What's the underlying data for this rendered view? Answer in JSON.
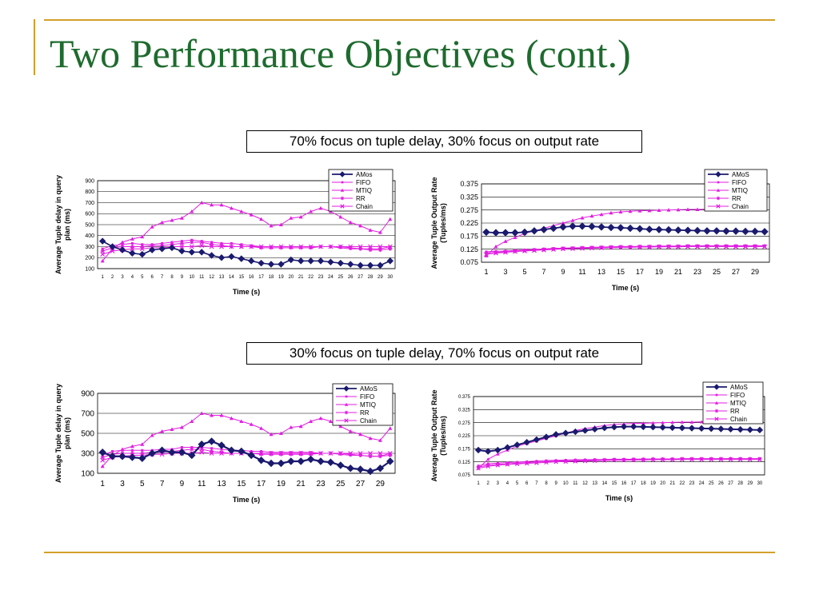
{
  "slide": {
    "title": "Two Performance Objectives (cont.)",
    "caption_top": "70% focus on tuple delay, 30% focus on output rate",
    "caption_bottom": "30% focus on tuple delay, 70% focus on output rate"
  },
  "colors": {
    "accent_gold": "#d4a02a",
    "title_green": "#1e6b2e",
    "amos_navy": "#1a1a6e",
    "magenta": "#e01ee0"
  },
  "chart_data": [
    {
      "id": "delay-top",
      "type": "line",
      "ylabel": "Average Tuple delay in query plan (ms)",
      "xlabel": "Time (s)",
      "ylim": [
        100,
        900
      ],
      "yticks": [
        "100",
        "200",
        "300",
        "400",
        "500",
        "600",
        "700",
        "800",
        "900"
      ],
      "x": [
        1,
        2,
        3,
        4,
        5,
        6,
        7,
        8,
        9,
        10,
        11,
        12,
        13,
        14,
        15,
        16,
        17,
        18,
        19,
        20,
        21,
        22,
        23,
        24,
        25,
        26,
        27,
        28,
        29,
        30
      ],
      "xticks": [
        "1",
        "2",
        "3",
        "4",
        "5",
        "6",
        "7",
        "8",
        "9",
        "10",
        "11",
        "12",
        "13",
        "14",
        "15",
        "16",
        "17",
        "18",
        "19",
        "20",
        "21",
        "22",
        "23",
        "24",
        "25",
        "26",
        "27",
        "28",
        "29",
        "30"
      ],
      "grid": true,
      "legend": "top-right",
      "series": [
        {
          "name": "AMos",
          "color": "#1a1a6e",
          "marker": "diamond",
          "values": [
            350,
            300,
            270,
            240,
            230,
            270,
            280,
            290,
            260,
            250,
            250,
            220,
            200,
            210,
            190,
            170,
            150,
            140,
            140,
            180,
            170,
            170,
            170,
            160,
            150,
            140,
            130,
            130,
            130,
            170
          ]
        },
        {
          "name": "FIFO",
          "color": "#e01ee0",
          "marker": "square",
          "values": [
            280,
            310,
            320,
            330,
            320,
            320,
            330,
            340,
            350,
            360,
            350,
            340,
            330,
            330,
            320,
            310,
            300,
            300,
            300,
            300,
            300,
            300,
            300,
            300,
            290,
            280,
            280,
            280,
            280,
            300
          ]
        },
        {
          "name": "MTIQ",
          "color": "#e01ee0",
          "marker": "triangle",
          "values": [
            170,
            280,
            340,
            370,
            390,
            480,
            520,
            540,
            560,
            620,
            700,
            680,
            680,
            650,
            620,
            590,
            550,
            490,
            500,
            560,
            570,
            620,
            650,
            620,
            570,
            520,
            490,
            450,
            430,
            550
          ]
        },
        {
          "name": "RR",
          "color": "#e01ee0",
          "marker": "star",
          "values": [
            260,
            290,
            300,
            300,
            300,
            310,
            310,
            320,
            330,
            340,
            340,
            320,
            310,
            300,
            300,
            300,
            290,
            290,
            290,
            290,
            290,
            290,
            300,
            300,
            300,
            290,
            280,
            270,
            270,
            280
          ]
        },
        {
          "name": "Chain",
          "color": "#e01ee0",
          "marker": "x",
          "values": [
            230,
            260,
            270,
            280,
            280,
            290,
            290,
            300,
            300,
            300,
            310,
            300,
            300,
            300,
            300,
            300,
            300,
            300,
            300,
            300,
            300,
            300,
            300,
            300,
            300,
            300,
            300,
            300,
            300,
            300
          ]
        }
      ]
    },
    {
      "id": "rate-top",
      "type": "line",
      "ylabel": "Average Tuple Output Rate (Tuples/ms)",
      "xlabel": "Time (s)",
      "ylim": [
        0.075,
        0.375
      ],
      "yticks": [
        "0.075",
        "0.125",
        "0.175",
        "0.225",
        "0.275",
        "0.325",
        "0.375"
      ],
      "x": [
        1,
        2,
        3,
        4,
        5,
        6,
        7,
        8,
        9,
        10,
        11,
        12,
        13,
        14,
        15,
        16,
        17,
        18,
        19,
        20,
        21,
        22,
        23,
        24,
        25,
        26,
        27,
        28,
        29,
        30
      ],
      "xticks": [
        "1",
        "",
        "3",
        "",
        "5",
        "",
        "7",
        "",
        "9",
        "",
        "11",
        "",
        "13",
        "",
        "15",
        "",
        "17",
        "",
        "19",
        "",
        "21",
        "",
        "23",
        "",
        "25",
        "",
        "27",
        "",
        "29",
        ""
      ],
      "grid": true,
      "legend": "top-right",
      "series": [
        {
          "name": "AMoS",
          "color": "#1a1a6e",
          "marker": "diamond",
          "values": [
            0.19,
            0.188,
            0.188,
            0.188,
            0.19,
            0.195,
            0.2,
            0.205,
            0.21,
            0.213,
            0.213,
            0.212,
            0.21,
            0.208,
            0.207,
            0.205,
            0.203,
            0.201,
            0.2,
            0.199,
            0.198,
            0.197,
            0.196,
            0.195,
            0.195,
            0.194,
            0.194,
            0.193,
            0.193,
            0.192
          ]
        },
        {
          "name": "FIFO",
          "color": "#e01ee0",
          "marker": "square",
          "values": [
            0.115,
            0.117,
            0.118,
            0.12,
            0.122,
            0.124,
            0.126,
            0.128,
            0.129,
            0.13,
            0.131,
            0.132,
            0.133,
            0.134,
            0.135,
            0.135,
            0.136,
            0.136,
            0.137,
            0.137,
            0.137,
            0.138,
            0.138,
            0.138,
            0.138,
            0.138,
            0.138,
            0.138,
            0.138,
            0.138
          ]
        },
        {
          "name": "MTIQ",
          "color": "#e01ee0",
          "marker": "triangle",
          "values": [
            0.1,
            0.135,
            0.155,
            0.17,
            0.185,
            0.195,
            0.205,
            0.215,
            0.225,
            0.235,
            0.245,
            0.252,
            0.258,
            0.264,
            0.268,
            0.27,
            0.272,
            0.273,
            0.274,
            0.275,
            0.276,
            0.277,
            0.277,
            0.278,
            0.278,
            0.278,
            0.279,
            0.279,
            0.279,
            0.279
          ]
        },
        {
          "name": "RR",
          "color": "#e01ee0",
          "marker": "star",
          "values": [
            0.11,
            0.113,
            0.115,
            0.117,
            0.12,
            0.122,
            0.124,
            0.126,
            0.128,
            0.129,
            0.13,
            0.131,
            0.132,
            0.133,
            0.134,
            0.134,
            0.135,
            0.135,
            0.136,
            0.136,
            0.136,
            0.137,
            0.137,
            0.137,
            0.137,
            0.137,
            0.137,
            0.137,
            0.137,
            0.137
          ]
        },
        {
          "name": "Chain",
          "color": "#e01ee0",
          "marker": "x",
          "values": [
            0.105,
            0.11,
            0.113,
            0.116,
            0.118,
            0.12,
            0.122,
            0.124,
            0.126,
            0.127,
            0.128,
            0.129,
            0.13,
            0.131,
            0.132,
            0.132,
            0.133,
            0.133,
            0.134,
            0.134,
            0.134,
            0.135,
            0.135,
            0.135,
            0.135,
            0.135,
            0.135,
            0.135,
            0.135,
            0.135
          ]
        }
      ]
    },
    {
      "id": "delay-bottom",
      "type": "line",
      "ylabel": "Average Tuple delay in query plan (ms)",
      "xlabel": "Time (s)",
      "ylim": [
        100,
        900
      ],
      "yticks": [
        "100",
        "300",
        "500",
        "700",
        "900"
      ],
      "x": [
        1,
        2,
        3,
        4,
        5,
        6,
        7,
        8,
        9,
        10,
        11,
        12,
        13,
        14,
        15,
        16,
        17,
        18,
        19,
        20,
        21,
        22,
        23,
        24,
        25,
        26,
        27,
        28,
        29,
        30
      ],
      "xticks": [
        "1",
        "",
        "3",
        "",
        "5",
        "",
        "7",
        "",
        "9",
        "",
        "11",
        "",
        "13",
        "",
        "15",
        "",
        "17",
        "",
        "19",
        "",
        "21",
        "",
        "23",
        "",
        "25",
        "",
        "27",
        "",
        "29",
        ""
      ],
      "grid": true,
      "legend": "top-right",
      "series": [
        {
          "name": "AMoS",
          "color": "#1a1a6e",
          "marker": "diamond",
          "values": [
            310,
            270,
            270,
            260,
            250,
            300,
            330,
            310,
            310,
            280,
            390,
            420,
            380,
            330,
            320,
            280,
            230,
            200,
            200,
            220,
            220,
            240,
            220,
            210,
            180,
            150,
            140,
            120,
            150,
            220
          ]
        },
        {
          "name": "FIFO",
          "color": "#e01ee0",
          "marker": "square",
          "values": [
            280,
            320,
            330,
            330,
            330,
            330,
            340,
            340,
            360,
            360,
            360,
            350,
            340,
            330,
            330,
            320,
            320,
            310,
            310,
            310,
            310,
            310,
            300,
            300,
            290,
            280,
            280,
            270,
            270,
            300
          ]
        },
        {
          "name": "MTIQ",
          "color": "#e01ee0",
          "marker": "triangle",
          "values": [
            170,
            280,
            340,
            370,
            390,
            480,
            520,
            540,
            560,
            620,
            700,
            680,
            680,
            650,
            620,
            590,
            550,
            490,
            500,
            560,
            570,
            620,
            650,
            620,
            570,
            520,
            490,
            450,
            430,
            550
          ]
        },
        {
          "name": "RR",
          "color": "#e01ee0",
          "marker": "star",
          "values": [
            260,
            290,
            300,
            300,
            300,
            310,
            310,
            320,
            330,
            340,
            340,
            320,
            310,
            300,
            300,
            300,
            290,
            290,
            290,
            290,
            290,
            290,
            300,
            300,
            300,
            290,
            280,
            270,
            270,
            280
          ]
        },
        {
          "name": "Chain",
          "color": "#e01ee0",
          "marker": "x",
          "values": [
            230,
            260,
            270,
            280,
            280,
            290,
            290,
            300,
            300,
            300,
            310,
            300,
            300,
            300,
            300,
            300,
            300,
            300,
            300,
            300,
            300,
            300,
            300,
            300,
            300,
            300,
            300,
            300,
            300,
            300
          ]
        }
      ]
    },
    {
      "id": "rate-bottom",
      "type": "line",
      "ylabel": "Average Tuple Output Rate (Tuples/ms)",
      "xlabel": "Time (s)",
      "ylim": [
        0.075,
        0.375
      ],
      "yticks": [
        "0.075",
        "0.125",
        "0.175",
        "0.225",
        "0.275",
        "0.325",
        "0.375"
      ],
      "x": [
        1,
        2,
        3,
        4,
        5,
        6,
        7,
        8,
        9,
        10,
        11,
        12,
        13,
        14,
        15,
        16,
        17,
        18,
        19,
        20,
        21,
        22,
        23,
        24,
        25,
        26,
        27,
        28,
        29,
        30
      ],
      "xticks": [
        "1",
        "2",
        "3",
        "4",
        "5",
        "6",
        "7",
        "8",
        "9",
        "10",
        "11",
        "12",
        "13",
        "14",
        "15",
        "16",
        "17",
        "18",
        "19",
        "20",
        "21",
        "22",
        "23",
        "24",
        "25",
        "26",
        "27",
        "28",
        "29",
        "30"
      ],
      "grid": true,
      "legend": "top-right",
      "series": [
        {
          "name": "AMoS",
          "color": "#1a1a6e",
          "marker": "diamond",
          "values": [
            0.17,
            0.165,
            0.17,
            0.18,
            0.19,
            0.2,
            0.21,
            0.22,
            0.23,
            0.235,
            0.24,
            0.245,
            0.25,
            0.255,
            0.258,
            0.26,
            0.26,
            0.259,
            0.258,
            0.257,
            0.256,
            0.255,
            0.254,
            0.253,
            0.252,
            0.251,
            0.25,
            0.249,
            0.248,
            0.247
          ]
        },
        {
          "name": "FIFO",
          "color": "#e01ee0",
          "marker": "square",
          "values": [
            0.11,
            0.118,
            0.12,
            0.122,
            0.124,
            0.126,
            0.128,
            0.13,
            0.131,
            0.132,
            0.133,
            0.133,
            0.134,
            0.134,
            0.135,
            0.135,
            0.135,
            0.136,
            0.136,
            0.136,
            0.136,
            0.137,
            0.137,
            0.137,
            0.137,
            0.137,
            0.137,
            0.137,
            0.137,
            0.137
          ]
        },
        {
          "name": "MTIQ",
          "color": "#e01ee0",
          "marker": "triangle",
          "values": [
            0.1,
            0.135,
            0.155,
            0.17,
            0.185,
            0.195,
            0.205,
            0.215,
            0.225,
            0.235,
            0.245,
            0.252,
            0.258,
            0.264,
            0.268,
            0.27,
            0.272,
            0.273,
            0.274,
            0.275,
            0.276,
            0.277,
            0.277,
            0.278,
            0.278,
            0.278,
            0.279,
            0.279,
            0.279,
            0.279
          ]
        },
        {
          "name": "RR",
          "color": "#e01ee0",
          "marker": "star",
          "values": [
            0.105,
            0.112,
            0.115,
            0.117,
            0.12,
            0.122,
            0.124,
            0.126,
            0.128,
            0.129,
            0.13,
            0.131,
            0.132,
            0.133,
            0.134,
            0.134,
            0.135,
            0.135,
            0.136,
            0.136,
            0.136,
            0.137,
            0.137,
            0.137,
            0.137,
            0.137,
            0.137,
            0.137,
            0.137,
            0.137
          ]
        },
        {
          "name": "Chain",
          "color": "#e01ee0",
          "marker": "x",
          "values": [
            0.1,
            0.108,
            0.112,
            0.115,
            0.117,
            0.119,
            0.121,
            0.123,
            0.125,
            0.126,
            0.127,
            0.128,
            0.129,
            0.13,
            0.131,
            0.131,
            0.132,
            0.132,
            0.133,
            0.133,
            0.133,
            0.134,
            0.134,
            0.134,
            0.134,
            0.134,
            0.134,
            0.134,
            0.134,
            0.134
          ]
        }
      ]
    }
  ]
}
